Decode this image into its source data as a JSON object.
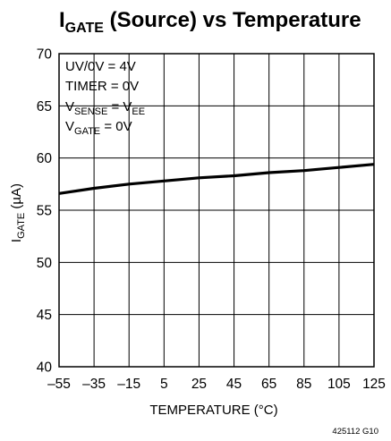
{
  "chart_data": {
    "type": "line",
    "title": {
      "main": "I",
      "sub": "GATE",
      "rest": " (Source) vs Temperature"
    },
    "xlabel": "TEMPERATURE (°C)",
    "ylabel": {
      "main": "I",
      "sub": "GATE",
      "rest": " (µA)"
    },
    "xlim": [
      -55,
      125
    ],
    "ylim": [
      40,
      70
    ],
    "xticks": [
      -55,
      -35,
      -15,
      5,
      25,
      45,
      65,
      85,
      105,
      125
    ],
    "xtick_labels": [
      "–55",
      "–35",
      "–15",
      "5",
      "25",
      "45",
      "65",
      "85",
      "105",
      "125"
    ],
    "yticks": [
      40,
      45,
      50,
      55,
      60,
      65,
      70
    ],
    "ytick_labels": [
      "40",
      "45",
      "50",
      "55",
      "60",
      "65",
      "70"
    ],
    "grid": true,
    "annotations": {
      "line1": "UV/0V = 4V",
      "line2": "TIMER = 0V",
      "line3": {
        "main": "V",
        "sub": "SENSE",
        "mid": " = V",
        "sub2": "EE"
      },
      "line4": {
        "main": "V",
        "sub": "GATE",
        "rest": " = 0V"
      }
    },
    "series": [
      {
        "x": [
          -55,
          -35,
          -15,
          5,
          25,
          45,
          65,
          85,
          105,
          125
        ],
        "y": [
          56.6,
          57.1,
          57.5,
          57.8,
          58.1,
          58.3,
          58.6,
          58.8,
          59.1,
          59.4
        ],
        "color": "#000000"
      }
    ],
    "figure_code": "425112 G10"
  }
}
